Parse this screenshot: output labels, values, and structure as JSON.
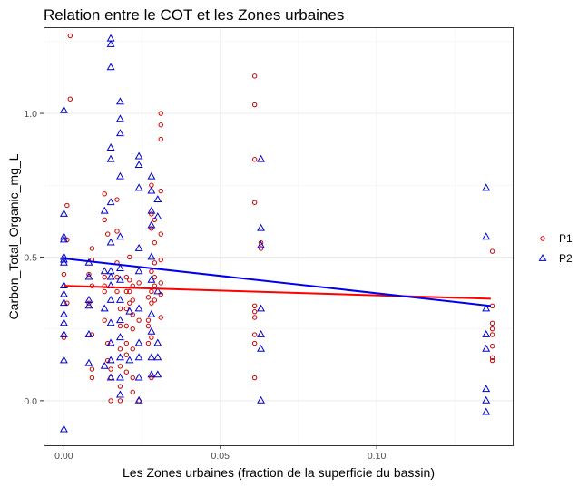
{
  "chart_data": {
    "type": "scatter",
    "title": "Relation entre le COT et les Zones urbaines",
    "xlabel": "Les Zones urbaines (fraction de la superficie du bassin)",
    "ylabel": "Carbon_Total_Organic_mg_L",
    "xlim": [
      -0.0065,
      0.1435
    ],
    "ylim": [
      -0.155,
      1.3
    ],
    "x_ticks": [
      0.0,
      0.05,
      0.1
    ],
    "x_tick_labels": [
      "0.00",
      "0.05",
      "0.10"
    ],
    "y_ticks": [
      0.0,
      0.5,
      1.0
    ],
    "y_tick_labels": [
      "0.0",
      "0.5",
      "1.0"
    ],
    "grid": true,
    "legend_position": "right",
    "series": [
      {
        "name": "P1",
        "marker": "circle",
        "color": "#cc0000",
        "trend": {
          "x": [
            0.0,
            0.1365
          ],
          "y": [
            0.4,
            0.355
          ],
          "color": "#ff0000"
        },
        "points": [
          [
            0.002,
            1.27
          ],
          [
            0.002,
            1.05
          ],
          [
            0.001,
            0.68
          ],
          [
            0.001,
            0.56
          ],
          [
            0.0,
            0.44
          ],
          [
            0.001,
            0.34
          ],
          [
            0.0,
            0.22
          ],
          [
            0.008,
            0.44
          ],
          [
            0.008,
            0.34
          ],
          [
            0.009,
            0.23
          ],
          [
            0.009,
            0.53
          ],
          [
            0.009,
            0.49
          ],
          [
            0.009,
            0.4
          ],
          [
            0.009,
            0.11
          ],
          [
            0.009,
            0.08
          ],
          [
            0.013,
            0.72
          ],
          [
            0.013,
            0.63
          ],
          [
            0.014,
            0.58
          ],
          [
            0.013,
            0.43
          ],
          [
            0.013,
            0.4
          ],
          [
            0.013,
            0.38
          ],
          [
            0.013,
            0.28
          ],
          [
            0.014,
            0.2
          ],
          [
            0.014,
            0.14
          ],
          [
            0.015,
            0.11
          ],
          [
            0.015,
            0.08
          ],
          [
            0.015,
            0.0
          ],
          [
            0.017,
            0.7
          ],
          [
            0.017,
            0.59
          ],
          [
            0.017,
            0.48
          ],
          [
            0.017,
            0.43
          ],
          [
            0.017,
            0.38
          ],
          [
            0.018,
            0.32
          ],
          [
            0.018,
            0.26
          ],
          [
            0.018,
            0.18
          ],
          [
            0.018,
            0.12
          ],
          [
            0.018,
            0.05
          ],
          [
            0.018,
            0.0
          ],
          [
            0.02,
            0.43
          ],
          [
            0.02,
            0.38
          ],
          [
            0.02,
            0.32
          ],
          [
            0.02,
            0.26
          ],
          [
            0.02,
            0.2
          ],
          [
            0.02,
            0.16
          ],
          [
            0.02,
            0.1
          ],
          [
            0.021,
            0.5
          ],
          [
            0.021,
            0.42
          ],
          [
            0.021,
            0.38
          ],
          [
            0.021,
            0.34
          ],
          [
            0.022,
            0.4
          ],
          [
            0.022,
            0.35
          ],
          [
            0.022,
            0.3
          ],
          [
            0.022,
            0.25
          ],
          [
            0.022,
            0.18
          ],
          [
            0.022,
            0.08
          ],
          [
            0.022,
            0.03
          ],
          [
            0.024,
            0.41
          ],
          [
            0.024,
            0.28
          ],
          [
            0.024,
            0.0
          ],
          [
            0.027,
            0.36
          ],
          [
            0.027,
            0.28
          ],
          [
            0.027,
            0.26
          ],
          [
            0.027,
            0.2
          ],
          [
            0.028,
            0.75
          ],
          [
            0.028,
            0.65
          ],
          [
            0.028,
            0.6
          ],
          [
            0.028,
            0.45
          ],
          [
            0.028,
            0.38
          ],
          [
            0.028,
            0.34
          ],
          [
            0.028,
            0.22
          ],
          [
            0.028,
            0.08
          ],
          [
            0.029,
            0.63
          ],
          [
            0.029,
            0.55
          ],
          [
            0.029,
            0.48
          ],
          [
            0.029,
            0.43
          ],
          [
            0.029,
            0.4
          ],
          [
            0.029,
            0.35
          ],
          [
            0.031,
            1.0
          ],
          [
            0.031,
            0.96
          ],
          [
            0.031,
            0.91
          ],
          [
            0.031,
            0.73
          ],
          [
            0.031,
            0.58
          ],
          [
            0.031,
            0.49
          ],
          [
            0.031,
            0.41
          ],
          [
            0.031,
            0.37
          ],
          [
            0.031,
            0.29
          ],
          [
            0.061,
            1.13
          ],
          [
            0.061,
            1.03
          ],
          [
            0.061,
            0.84
          ],
          [
            0.061,
            0.69
          ],
          [
            0.061,
            0.33
          ],
          [
            0.061,
            0.31
          ],
          [
            0.061,
            0.29
          ],
          [
            0.061,
            0.23
          ],
          [
            0.061,
            0.2
          ],
          [
            0.061,
            0.08
          ],
          [
            0.063,
            0.55
          ],
          [
            0.063,
            0.53
          ],
          [
            0.137,
            0.52
          ],
          [
            0.137,
            0.33
          ],
          [
            0.137,
            0.27
          ],
          [
            0.137,
            0.25
          ],
          [
            0.137,
            0.23
          ],
          [
            0.137,
            0.19
          ],
          [
            0.137,
            0.15
          ],
          [
            0.137,
            0.14
          ]
        ]
      },
      {
        "name": "P2",
        "marker": "triangle",
        "color": "#0000cc",
        "trend": {
          "x": [
            0.0,
            0.1365
          ],
          "y": [
            0.495,
            0.33
          ],
          "color": "#0000ee"
        },
        "points": [
          [
            0.0,
            1.01
          ],
          [
            0.0,
            0.65
          ],
          [
            0.0,
            0.57
          ],
          [
            0.0,
            0.56
          ],
          [
            0.0,
            0.5
          ],
          [
            0.0,
            0.49
          ],
          [
            0.0,
            0.48
          ],
          [
            0.0,
            0.4
          ],
          [
            0.0,
            0.37
          ],
          [
            0.0,
            0.34
          ],
          [
            0.0,
            0.3
          ],
          [
            0.0,
            0.27
          ],
          [
            0.0,
            0.23
          ],
          [
            0.0,
            0.14
          ],
          [
            0.0,
            -0.1
          ],
          [
            0.008,
            0.48
          ],
          [
            0.008,
            0.43
          ],
          [
            0.008,
            0.35
          ],
          [
            0.008,
            0.33
          ],
          [
            0.008,
            0.23
          ],
          [
            0.008,
            0.13
          ],
          [
            0.013,
            0.66
          ],
          [
            0.013,
            0.45
          ],
          [
            0.013,
            0.32
          ],
          [
            0.013,
            0.12
          ],
          [
            0.015,
            1.26
          ],
          [
            0.015,
            1.24
          ],
          [
            0.015,
            1.16
          ],
          [
            0.015,
            0.88
          ],
          [
            0.015,
            0.84
          ],
          [
            0.015,
            0.69
          ],
          [
            0.015,
            0.55
          ],
          [
            0.015,
            0.45
          ],
          [
            0.015,
            0.43
          ],
          [
            0.015,
            0.4
          ],
          [
            0.015,
            0.35
          ],
          [
            0.015,
            0.27
          ],
          [
            0.015,
            0.2
          ],
          [
            0.015,
            0.14
          ],
          [
            0.015,
            0.08
          ],
          [
            0.018,
            1.04
          ],
          [
            0.018,
            0.98
          ],
          [
            0.018,
            0.93
          ],
          [
            0.018,
            0.78
          ],
          [
            0.018,
            0.57
          ],
          [
            0.018,
            0.46
          ],
          [
            0.018,
            0.42
          ],
          [
            0.018,
            0.35
          ],
          [
            0.018,
            0.28
          ],
          [
            0.018,
            0.22
          ],
          [
            0.018,
            0.15
          ],
          [
            0.018,
            0.08
          ],
          [
            0.018,
            0.02
          ],
          [
            0.021,
            0.31
          ],
          [
            0.021,
            0.14
          ],
          [
            0.024,
            0.85
          ],
          [
            0.024,
            0.82
          ],
          [
            0.024,
            0.74
          ],
          [
            0.024,
            0.53
          ],
          [
            0.024,
            0.45
          ],
          [
            0.024,
            0.32
          ],
          [
            0.024,
            0.2
          ],
          [
            0.024,
            0.15
          ],
          [
            0.024,
            0.08
          ],
          [
            0.024,
            0.0
          ],
          [
            0.028,
            0.78
          ],
          [
            0.028,
            0.73
          ],
          [
            0.028,
            0.66
          ],
          [
            0.028,
            0.61
          ],
          [
            0.028,
            0.5
          ],
          [
            0.028,
            0.42
          ],
          [
            0.028,
            0.3
          ],
          [
            0.028,
            0.24
          ],
          [
            0.028,
            0.15
          ],
          [
            0.028,
            0.09
          ],
          [
            0.03,
            0.7
          ],
          [
            0.03,
            0.64
          ],
          [
            0.03,
            0.38
          ],
          [
            0.03,
            0.2
          ],
          [
            0.03,
            0.15
          ],
          [
            0.03,
            0.09
          ],
          [
            0.063,
            0.84
          ],
          [
            0.063,
            0.6
          ],
          [
            0.063,
            0.54
          ],
          [
            0.063,
            0.32
          ],
          [
            0.063,
            0.23
          ],
          [
            0.063,
            0.18
          ],
          [
            0.063,
            0.0
          ],
          [
            0.135,
            0.74
          ],
          [
            0.135,
            0.57
          ],
          [
            0.135,
            0.32
          ],
          [
            0.135,
            0.23
          ],
          [
            0.135,
            0.18
          ],
          [
            0.135,
            0.04
          ],
          [
            0.135,
            0.0
          ],
          [
            0.135,
            -0.04
          ]
        ]
      }
    ]
  }
}
